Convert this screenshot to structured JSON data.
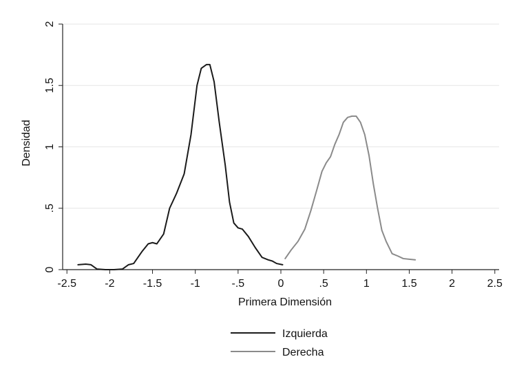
{
  "chart_data": {
    "type": "line",
    "xlabel": "Primera Dimensión",
    "ylabel": "Densidad",
    "xlim": [
      -2.55,
      2.55
    ],
    "ylim": [
      0,
      2
    ],
    "x_ticks": [
      {
        "value": -2.5,
        "label": "-2.5"
      },
      {
        "value": -2,
        "label": "-2"
      },
      {
        "value": -1.5,
        "label": "-1.5"
      },
      {
        "value": -1,
        "label": "-1"
      },
      {
        "value": -0.5,
        "label": "-.5"
      },
      {
        "value": 0,
        "label": "0"
      },
      {
        "value": 0.5,
        "label": ".5"
      },
      {
        "value": 1,
        "label": "1"
      },
      {
        "value": 1.5,
        "label": "1.5"
      },
      {
        "value": 2,
        "label": "2"
      },
      {
        "value": 2.5,
        "label": "2.5"
      }
    ],
    "y_ticks": [
      {
        "value": 0,
        "label": "0"
      },
      {
        "value": 0.5,
        "label": ".5"
      },
      {
        "value": 1,
        "label": "1"
      },
      {
        "value": 1.5,
        "label": "1.5"
      },
      {
        "value": 2,
        "label": "2"
      }
    ],
    "grid": "horizontal",
    "legend_position": "bottom",
    "series": [
      {
        "name": "Izquierda",
        "color": "#1a1a1a",
        "points": [
          [
            -2.37,
            0.04
          ],
          [
            -2.28,
            0.045
          ],
          [
            -2.22,
            0.04
          ],
          [
            -2.15,
            0.005
          ],
          [
            -2.05,
            0.0
          ],
          [
            -1.95,
            0.0
          ],
          [
            -1.85,
            0.005
          ],
          [
            -1.78,
            0.04
          ],
          [
            -1.72,
            0.05
          ],
          [
            -1.62,
            0.15
          ],
          [
            -1.55,
            0.21
          ],
          [
            -1.5,
            0.22
          ],
          [
            -1.45,
            0.21
          ],
          [
            -1.37,
            0.29
          ],
          [
            -1.3,
            0.5
          ],
          [
            -1.22,
            0.62
          ],
          [
            -1.13,
            0.78
          ],
          [
            -1.05,
            1.1
          ],
          [
            -0.98,
            1.5
          ],
          [
            -0.93,
            1.64
          ],
          [
            -0.87,
            1.67
          ],
          [
            -0.83,
            1.67
          ],
          [
            -0.78,
            1.53
          ],
          [
            -0.72,
            1.2
          ],
          [
            -0.65,
            0.85
          ],
          [
            -0.6,
            0.55
          ],
          [
            -0.55,
            0.38
          ],
          [
            -0.5,
            0.34
          ],
          [
            -0.45,
            0.33
          ],
          [
            -0.38,
            0.27
          ],
          [
            -0.3,
            0.18
          ],
          [
            -0.22,
            0.1
          ],
          [
            -0.15,
            0.08
          ],
          [
            -0.1,
            0.07
          ],
          [
            -0.05,
            0.05
          ],
          [
            0.02,
            0.04
          ]
        ]
      },
      {
        "name": "Derecha",
        "color": "#8a8a8a",
        "points": [
          [
            0.05,
            0.09
          ],
          [
            0.12,
            0.16
          ],
          [
            0.2,
            0.23
          ],
          [
            0.28,
            0.33
          ],
          [
            0.35,
            0.48
          ],
          [
            0.42,
            0.65
          ],
          [
            0.48,
            0.8
          ],
          [
            0.53,
            0.87
          ],
          [
            0.58,
            0.92
          ],
          [
            0.63,
            1.02
          ],
          [
            0.68,
            1.1
          ],
          [
            0.73,
            1.2
          ],
          [
            0.78,
            1.24
          ],
          [
            0.83,
            1.25
          ],
          [
            0.88,
            1.25
          ],
          [
            0.93,
            1.2
          ],
          [
            0.98,
            1.1
          ],
          [
            1.03,
            0.93
          ],
          [
            1.08,
            0.7
          ],
          [
            1.13,
            0.5
          ],
          [
            1.18,
            0.32
          ],
          [
            1.23,
            0.23
          ],
          [
            1.3,
            0.13
          ],
          [
            1.37,
            0.11
          ],
          [
            1.43,
            0.09
          ],
          [
            1.5,
            0.085
          ],
          [
            1.57,
            0.08
          ]
        ]
      }
    ]
  }
}
